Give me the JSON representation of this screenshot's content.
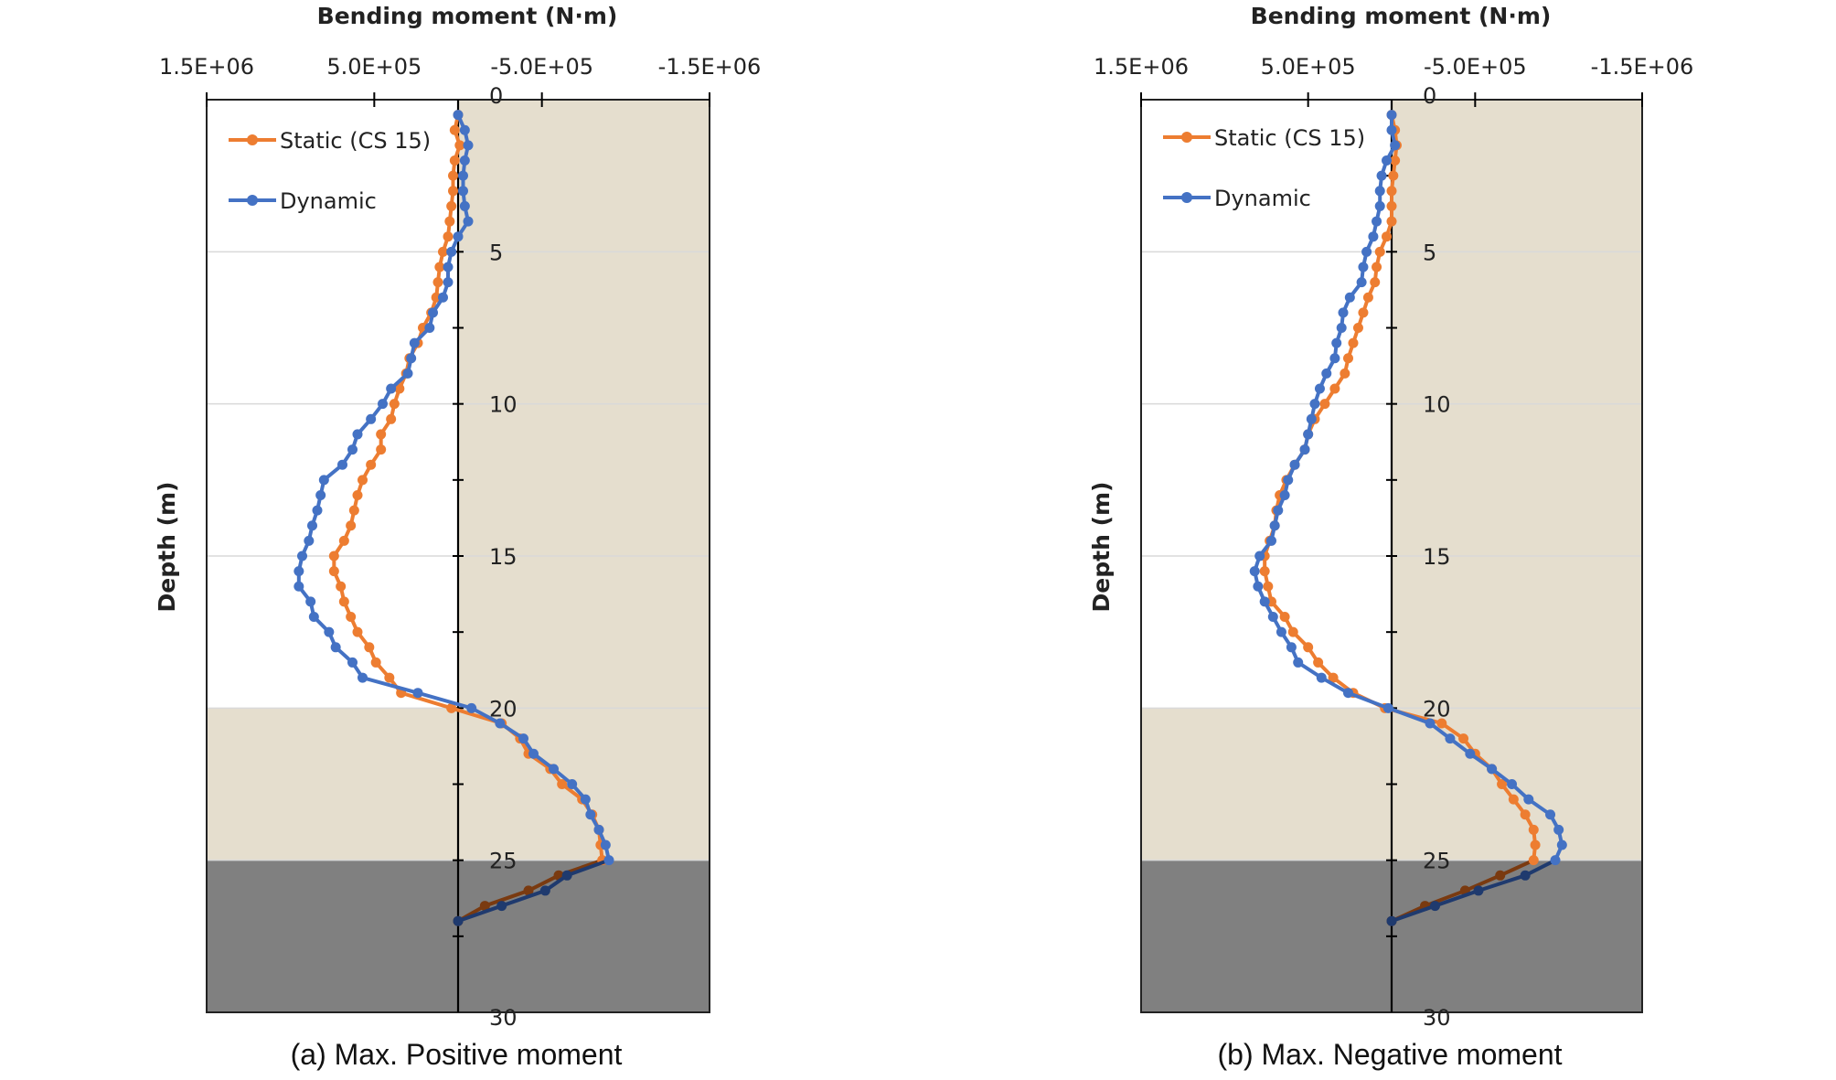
{
  "colors": {
    "static": "#ED7D31",
    "dynamic": "#4472C4",
    "dynamic_dark": "#1F3A6E",
    "static_dark": "#7A3A10",
    "soil": "#E5DECE",
    "rock": "#808080",
    "grid": "#D9D9D9",
    "axis": "#000000"
  },
  "chart_data": [
    {
      "type": "line",
      "caption": "(a) Max. Positive moment",
      "xlabel": "Bending moment (N·m)",
      "ylabel": "Depth (m)",
      "x_tick_labels": [
        "1.5E+06",
        "5.0E+05",
        "-5.0E+05",
        "-1.5E+06"
      ],
      "x_ticks": [
        1500000,
        500000,
        -500000,
        -1500000
      ],
      "xlim": [
        1500000,
        -1500000
      ],
      "y_tick_labels": [
        "0",
        "5",
        "10",
        "15",
        "20",
        "25",
        "30"
      ],
      "y_ticks": [
        0,
        5,
        10,
        15,
        20,
        25,
        30
      ],
      "ylim": [
        0,
        30
      ],
      "layers": [
        {
          "name": "upper-soil",
          "from": 0,
          "to": 20,
          "region": "right"
        },
        {
          "name": "lower-soil",
          "from": 20,
          "to": 25,
          "region": "full"
        },
        {
          "name": "rock",
          "from": 25,
          "to": 30,
          "region": "full"
        }
      ],
      "legend": [
        "Static (CS 15)",
        "Dynamic"
      ],
      "series": [
        {
          "name": "Static (CS 15)",
          "depth": [
            0.5,
            1,
            1.5,
            2,
            2.5,
            3,
            3.5,
            4,
            4.5,
            5,
            5.5,
            6,
            6.5,
            7,
            7.5,
            8,
            8.5,
            9,
            9.5,
            10,
            10.5,
            11,
            11.5,
            12,
            12.5,
            13,
            13.5,
            14,
            14.5,
            15,
            15.5,
            16,
            16.5,
            17,
            17.5,
            18,
            18.5,
            19,
            19.5,
            20,
            20.5,
            21,
            21.5,
            22,
            22.5,
            23,
            23.5,
            24,
            24.5,
            25,
            25.5,
            26,
            26.5,
            27
          ],
          "values": [
            0,
            20000,
            -10000,
            20000,
            30000,
            30000,
            40000,
            50000,
            60000,
            90000,
            110000,
            120000,
            130000,
            160000,
            210000,
            240000,
            290000,
            310000,
            350000,
            380000,
            400000,
            460000,
            460000,
            520000,
            570000,
            600000,
            620000,
            640000,
            680000,
            740000,
            740000,
            700000,
            680000,
            640000,
            600000,
            530000,
            490000,
            410000,
            340000,
            40000,
            -260000,
            -370000,
            -420000,
            -550000,
            -620000,
            -740000,
            -800000,
            -840000,
            -850000,
            -860000,
            -600000,
            -420000,
            -160000,
            0
          ]
        },
        {
          "name": "Dynamic",
          "depth": [
            0.5,
            1,
            1.5,
            2,
            2.5,
            3,
            3.5,
            4,
            4.5,
            5,
            5.5,
            6,
            6.5,
            7,
            7.5,
            8,
            8.5,
            9,
            9.5,
            10,
            10.5,
            11,
            11.5,
            12,
            12.5,
            13,
            13.5,
            14,
            14.5,
            15,
            15.5,
            16,
            16.5,
            17,
            17.5,
            18,
            18.5,
            19,
            19.5,
            20,
            20.5,
            21,
            21.5,
            22,
            22.5,
            23,
            23.5,
            24,
            24.5,
            25,
            25.5,
            26,
            26.5,
            27
          ],
          "values": [
            0,
            -40000,
            -60000,
            -40000,
            -30000,
            -30000,
            -40000,
            -60000,
            0,
            40000,
            60000,
            60000,
            90000,
            150000,
            170000,
            260000,
            280000,
            300000,
            400000,
            450000,
            520000,
            600000,
            630000,
            690000,
            800000,
            820000,
            840000,
            870000,
            890000,
            930000,
            950000,
            950000,
            880000,
            860000,
            770000,
            730000,
            630000,
            570000,
            240000,
            -80000,
            -250000,
            -390000,
            -450000,
            -570000,
            -680000,
            -760000,
            -790000,
            -840000,
            -880000,
            -900000,
            -650000,
            -520000,
            -260000,
            0
          ]
        }
      ]
    },
    {
      "type": "line",
      "caption": "(b) Max. Negative moment",
      "xlabel": "Bending moment (N·m)",
      "ylabel": "Depth (m)",
      "x_tick_labels": [
        "1.5E+06",
        "5.0E+05",
        "-5.0E+05",
        "-1.5E+06"
      ],
      "x_ticks": [
        1500000,
        500000,
        -500000,
        -1500000
      ],
      "xlim": [
        1500000,
        -1500000
      ],
      "y_tick_labels": [
        "0",
        "5",
        "10",
        "15",
        "20",
        "25",
        "30"
      ],
      "y_ticks": [
        0,
        5,
        10,
        15,
        20,
        25,
        30
      ],
      "ylim": [
        0,
        30
      ],
      "layers": [
        {
          "name": "upper-soil",
          "from": 0,
          "to": 20,
          "region": "right"
        },
        {
          "name": "lower-soil",
          "from": 20,
          "to": 25,
          "region": "full"
        },
        {
          "name": "rock",
          "from": 25,
          "to": 30,
          "region": "full"
        }
      ],
      "legend": [
        "Static (CS 15)",
        "Dynamic"
      ],
      "series": [
        {
          "name": "Static (CS 15)",
          "depth": [
            0.5,
            1,
            1.5,
            2,
            2.5,
            3,
            3.5,
            4,
            4.5,
            5,
            5.5,
            6,
            6.5,
            7,
            7.5,
            8,
            8.5,
            9,
            9.5,
            10,
            10.5,
            11,
            11.5,
            12,
            12.5,
            13,
            13.5,
            14,
            14.5,
            15,
            15.5,
            16,
            16.5,
            17,
            17.5,
            18,
            18.5,
            19,
            19.5,
            20,
            20.5,
            21,
            21.5,
            22,
            22.5,
            23,
            23.5,
            24,
            24.5,
            25,
            25.5,
            26,
            26.5,
            27
          ],
          "values": [
            0,
            -20000,
            -30000,
            -20000,
            -10000,
            0,
            0,
            0,
            30000,
            70000,
            90000,
            100000,
            140000,
            170000,
            200000,
            230000,
            260000,
            280000,
            340000,
            400000,
            460000,
            500000,
            520000,
            580000,
            630000,
            670000,
            690000,
            700000,
            730000,
            760000,
            760000,
            740000,
            720000,
            640000,
            590000,
            500000,
            440000,
            350000,
            230000,
            40000,
            -300000,
            -430000,
            -500000,
            -600000,
            -660000,
            -730000,
            -800000,
            -850000,
            -860000,
            -850000,
            -650000,
            -440000,
            -200000,
            0
          ]
        },
        {
          "name": "Dynamic",
          "depth": [
            0.5,
            1,
            1.5,
            2,
            2.5,
            3,
            3.5,
            4,
            4.5,
            5,
            5.5,
            6,
            6.5,
            7,
            7.5,
            8,
            8.5,
            9,
            9.5,
            10,
            10.5,
            11,
            11.5,
            12,
            12.5,
            13,
            13.5,
            14,
            14.5,
            15,
            15.5,
            16,
            16.5,
            17,
            17.5,
            18,
            18.5,
            19,
            19.5,
            20,
            20.5,
            21,
            21.5,
            22,
            22.5,
            23,
            23.5,
            24,
            24.5,
            25,
            25.5,
            26,
            26.5,
            27
          ],
          "values": [
            0,
            0,
            -20000,
            30000,
            60000,
            70000,
            70000,
            90000,
            110000,
            150000,
            170000,
            180000,
            250000,
            290000,
            300000,
            330000,
            340000,
            390000,
            430000,
            460000,
            480000,
            500000,
            520000,
            580000,
            620000,
            640000,
            680000,
            700000,
            720000,
            790000,
            820000,
            800000,
            760000,
            710000,
            660000,
            600000,
            560000,
            420000,
            260000,
            20000,
            -230000,
            -350000,
            -470000,
            -600000,
            -720000,
            -820000,
            -950000,
            -1000000,
            -1020000,
            -980000,
            -800000,
            -520000,
            -260000,
            0
          ]
        }
      ]
    }
  ]
}
